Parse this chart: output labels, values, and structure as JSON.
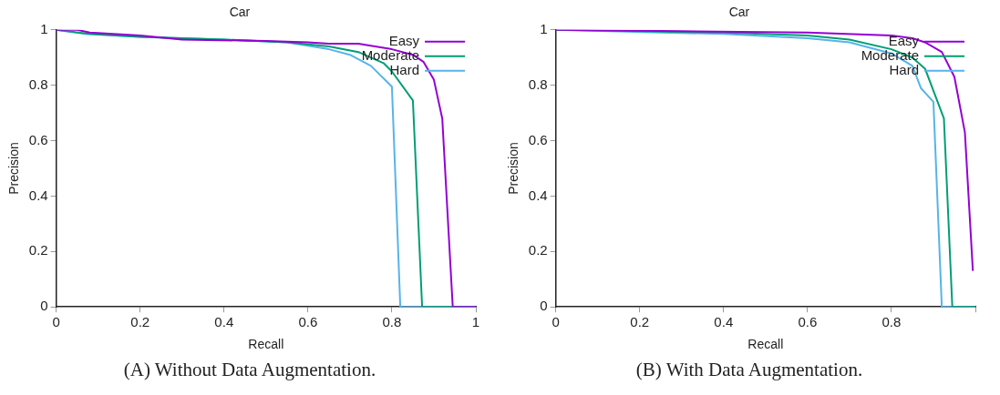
{
  "chart_data": [
    {
      "type": "line",
      "title": "Car",
      "xlabel": "Recall",
      "ylabel": "Precision",
      "xlim": [
        0,
        1
      ],
      "ylim": [
        0,
        1
      ],
      "xticks": [
        0,
        0.2,
        0.4,
        0.6,
        0.8,
        1
      ],
      "yticks": [
        0,
        0.2,
        0.4,
        0.6,
        0.8,
        1
      ],
      "grid": false,
      "legend": "top right",
      "marker": "none",
      "line_style": "solid",
      "annotations": [
        "(A) Without Data Augmentation."
      ],
      "series": [
        {
          "name": "Easy",
          "color": "#9400d3",
          "x": [
            0,
            0.05,
            0.08,
            0.2,
            0.3,
            0.5,
            0.6,
            0.65,
            0.72,
            0.8,
            0.85,
            0.875,
            0.9,
            0.92,
            0.945,
            1
          ],
          "values": [
            1,
            1,
            0.99,
            0.98,
            0.965,
            0.96,
            0.955,
            0.95,
            0.95,
            0.93,
            0.91,
            0.885,
            0.82,
            0.68,
            0,
            0
          ]
        },
        {
          "name": "Moderate",
          "color": "#009e73",
          "x": [
            0,
            0.08,
            0.2,
            0.4,
            0.55,
            0.65,
            0.72,
            0.78,
            0.8,
            0.85,
            0.872,
            1
          ],
          "values": [
            1,
            0.985,
            0.975,
            0.965,
            0.955,
            0.94,
            0.92,
            0.88,
            0.85,
            0.745,
            0,
            0
          ]
        },
        {
          "name": "Hard",
          "color": "#56b4e9",
          "x": [
            0,
            0.07,
            0.2,
            0.4,
            0.55,
            0.65,
            0.7,
            0.75,
            0.8,
            0.82,
            1
          ],
          "values": [
            1,
            0.985,
            0.975,
            0.965,
            0.955,
            0.93,
            0.91,
            0.87,
            0.795,
            0,
            0
          ]
        }
      ]
    },
    {
      "type": "line",
      "title": "Car",
      "xlabel": "Recall",
      "ylabel": "Precision",
      "xlim": [
        0,
        1
      ],
      "ylim": [
        0,
        1
      ],
      "xticks": [
        0,
        0.2,
        0.4,
        0.6,
        0.8,
        {
          "value": 1,
          "label": null
        }
      ],
      "yticks": [
        0,
        0.2,
        0.4,
        0.6,
        0.8,
        1
      ],
      "grid": false,
      "legend": "top right",
      "marker": "none",
      "line_style": "solid",
      "annotations": [
        "(B) With Data Augmentation."
      ],
      "series": [
        {
          "name": "Easy",
          "color": "#9400d3",
          "x": [
            0,
            0.3,
            0.6,
            0.8,
            0.85,
            0.88,
            0.92,
            0.95,
            0.975,
            0.994
          ],
          "values": [
            1,
            0.995,
            0.99,
            0.98,
            0.97,
            0.955,
            0.92,
            0.83,
            0.63,
            0.13
          ]
        },
        {
          "name": "Moderate",
          "color": "#009e73",
          "x": [
            0,
            0.4,
            0.6,
            0.7,
            0.8,
            0.85,
            0.88,
            0.925,
            0.945,
            1
          ],
          "values": [
            1,
            0.99,
            0.98,
            0.965,
            0.93,
            0.9,
            0.86,
            0.68,
            0,
            0
          ]
        },
        {
          "name": "Hard",
          "color": "#56b4e9",
          "x": [
            0,
            0.4,
            0.6,
            0.7,
            0.8,
            0.85,
            0.87,
            0.9,
            0.92,
            1
          ],
          "values": [
            1,
            0.985,
            0.97,
            0.955,
            0.915,
            0.87,
            0.79,
            0.74,
            0,
            0
          ]
        }
      ]
    }
  ]
}
